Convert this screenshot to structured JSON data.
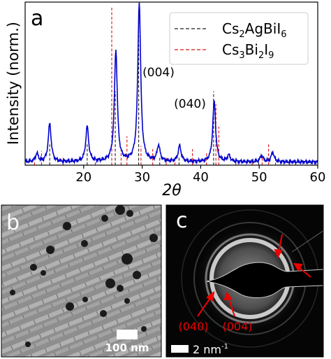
{
  "panel_a": {
    "label": "a",
    "peak_labels": {
      "p004": "(004)",
      "p040": "(040)"
    },
    "legend": {
      "entry1": {
        "base": "Cs",
        "s1": "2",
        "mid": "AgBiI",
        "s2": "6"
      },
      "entry2": {
        "base": "Cs",
        "s1": "3",
        "mid": "Bi",
        "s2": "2",
        "tail": "I",
        "s3": "9"
      }
    }
  },
  "panel_b": {
    "label": "b",
    "scalebar": "100 nm"
  },
  "panel_c": {
    "label": "c",
    "scalebar": {
      "text": "2 nm",
      "sup": "-1"
    },
    "ring_labels": {
      "r040": "(040)",
      "r004": "(004)"
    }
  },
  "colors": {
    "measured": "#0000cc",
    "ref1": "#222222",
    "ref2": "#dd1111",
    "arrow": "#ee0000"
  },
  "chart_data": {
    "type": "line",
    "xlabel": "2θ",
    "ylabel": "Intensity (norm.)",
    "xlim": [
      10,
      60
    ],
    "ylim": [
      0,
      1.0
    ],
    "xticks": [
      "20",
      "30",
      "40",
      "50",
      "60"
    ],
    "yticks_shown": false,
    "series": [
      {
        "name": "measured",
        "style": "solid",
        "peaks": [
          [
            12.0,
            0.05
          ],
          [
            14.2,
            0.24
          ],
          [
            20.6,
            0.22
          ],
          [
            25.5,
            0.7
          ],
          [
            29.5,
            1.0
          ],
          [
            32.8,
            0.1
          ],
          [
            36.4,
            0.1
          ],
          [
            42.3,
            0.38
          ],
          [
            44.8,
            0.04
          ],
          [
            50.4,
            0.04
          ],
          [
            52.3,
            0.06
          ]
        ],
        "baseline": 0.02
      },
      {
        "name": "Cs2AgBiI6",
        "style": "dashed",
        "sticks": [
          [
            14.2,
            0.13
          ],
          [
            20.6,
            0.13
          ],
          [
            25.4,
            0.46
          ],
          [
            29.4,
            0.92
          ],
          [
            33.0,
            0.05
          ],
          [
            36.3,
            0.05
          ],
          [
            42.2,
            0.46
          ],
          [
            49.9,
            0.02
          ]
        ]
      },
      {
        "name": "Cs3Bi2I9",
        "style": "dashed",
        "sticks": [
          [
            11.6,
            0.03
          ],
          [
            12.8,
            0.09
          ],
          [
            16.5,
            0.05
          ],
          [
            22.0,
            0.03
          ],
          [
            24.8,
            0.99
          ],
          [
            26.4,
            0.1
          ],
          [
            27.4,
            0.18
          ],
          [
            29.8,
            0.12
          ],
          [
            31.8,
            0.1
          ],
          [
            34.1,
            0.05
          ],
          [
            35.6,
            0.05
          ],
          [
            38.6,
            0.1
          ],
          [
            41.0,
            0.08
          ],
          [
            42.6,
            0.38
          ],
          [
            43.1,
            0.24
          ],
          [
            46.0,
            0.05
          ],
          [
            48.8,
            0.03
          ],
          [
            50.5,
            0.05
          ],
          [
            51.6,
            0.13
          ],
          [
            52.8,
            0.04
          ],
          [
            55.2,
            0.03
          ]
        ]
      }
    ]
  }
}
